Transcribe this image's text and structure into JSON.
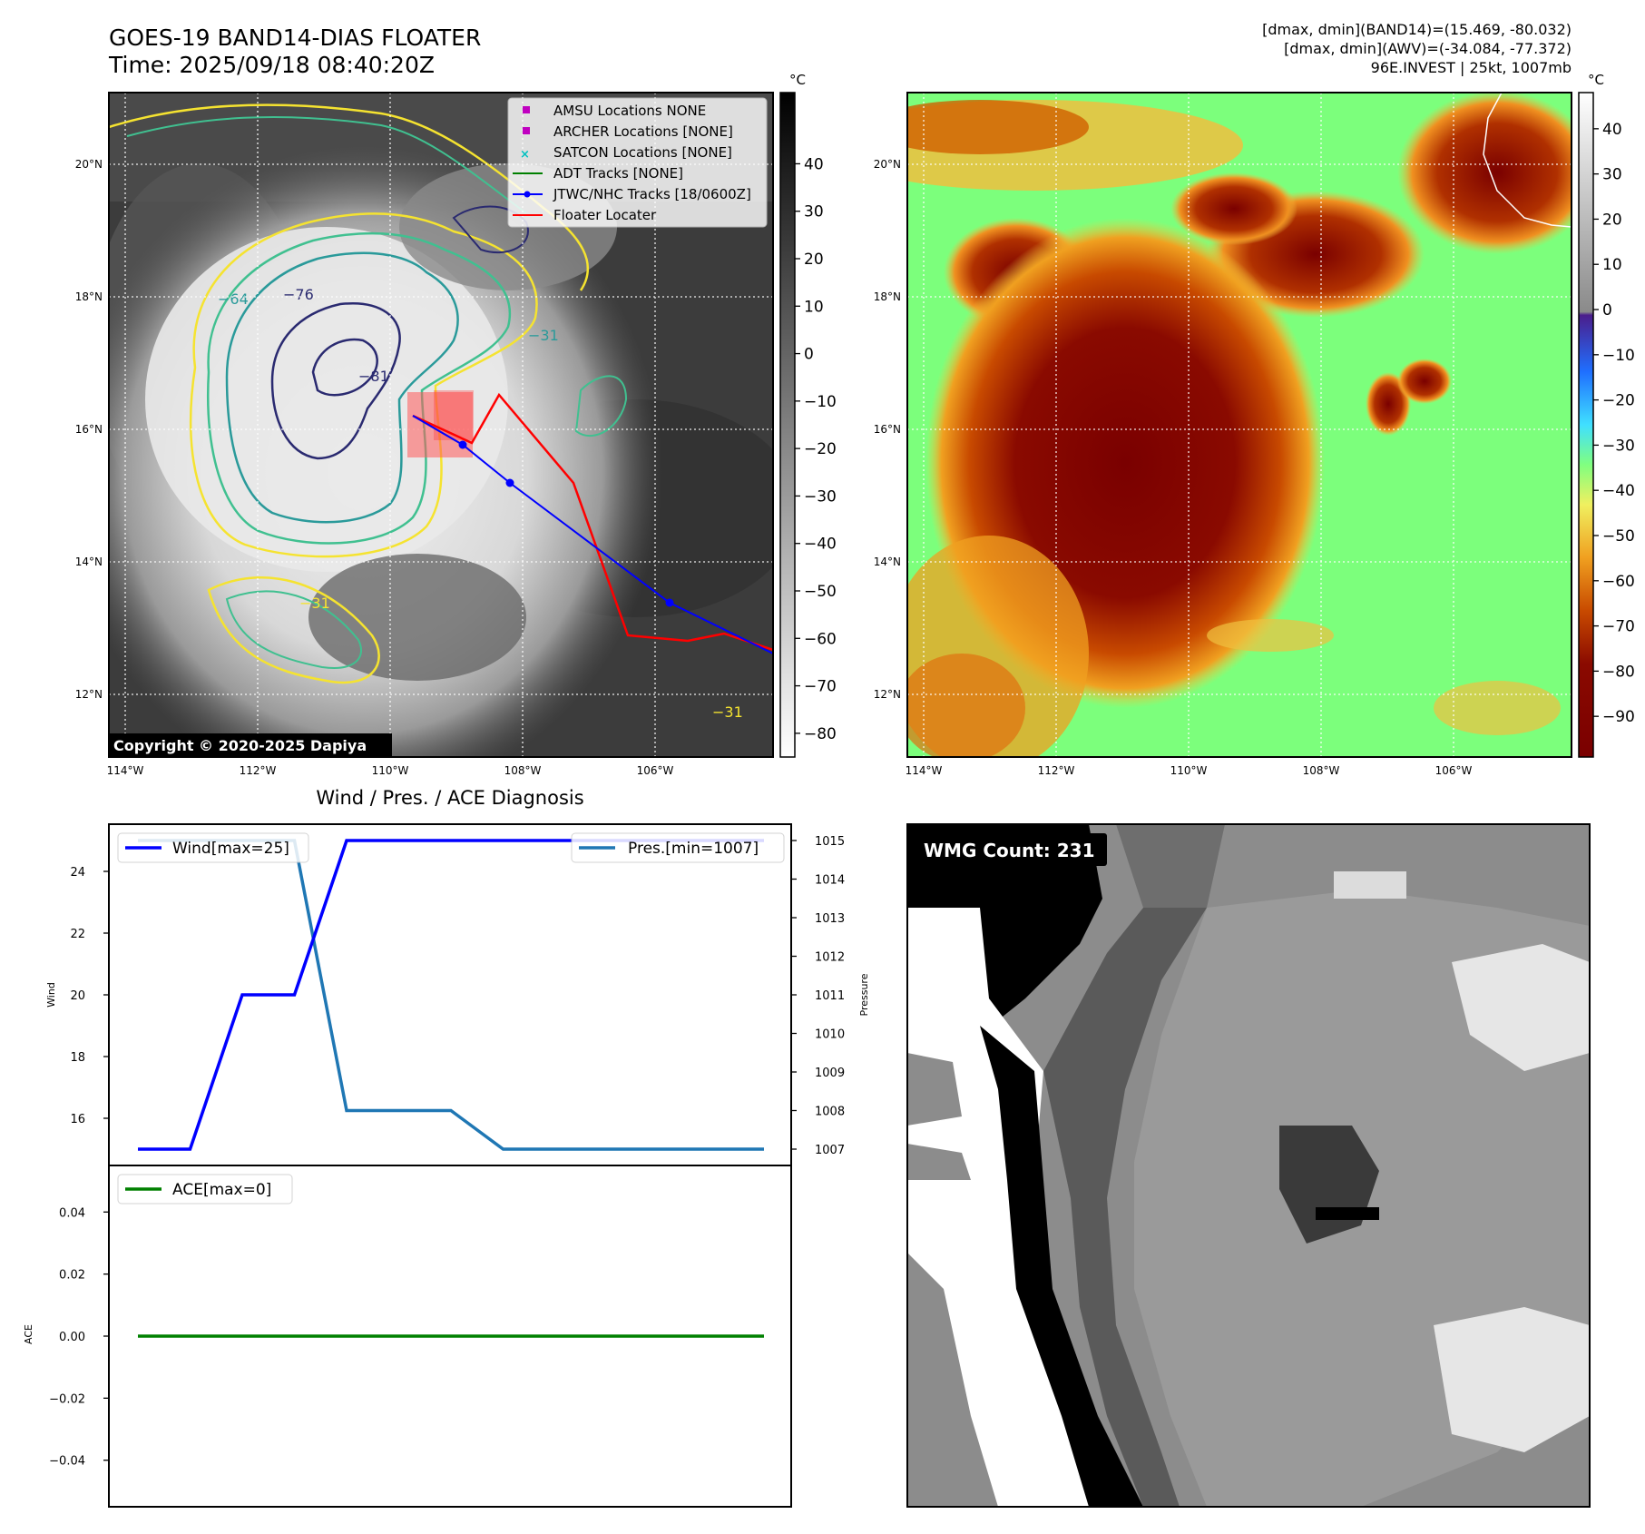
{
  "header": {
    "title": "GOES-19 BAND14-DIAS FLOATER",
    "time": "Time: 2025/09/18 08:40:20Z",
    "info_line1": "[dmax, dmin](BAND14)=(15.469, -80.032)",
    "info_line2": "[dmax, dmin](AWV)=(-34.084, -77.372)",
    "info_line3": "96E.INVEST | 25kt, 1007mb"
  },
  "ir_panel": {
    "copyright": "Copyright © 2020-2025 Dapiya",
    "colorbar_unit": "°C",
    "colorbar_ticks": [
      "40",
      "30",
      "20",
      "10",
      "0",
      "−10",
      "−20",
      "−30",
      "−40",
      "−50",
      "−60",
      "−70",
      "−80"
    ],
    "lat_ticks": [
      "20°N",
      "18°N",
      "16°N",
      "14°N",
      "12°N"
    ],
    "lon_ticks": [
      "114°W",
      "112°W",
      "110°W",
      "108°W",
      "106°W"
    ],
    "contour_labels": [
      "−31",
      "−31",
      "−31",
      "−64",
      "−76",
      "−81"
    ],
    "legend": [
      {
        "label": "AMSU Locations NONE",
        "color": "#c000c0",
        "marker": "square"
      },
      {
        "label": "ARCHER Locations [NONE]",
        "color": "#c000c0",
        "marker": "square"
      },
      {
        "label": "SATCON Locations [NONE]",
        "color": "#00c0c0",
        "marker": "x"
      },
      {
        "label": "ADT Tracks [NONE]",
        "color": "#008000",
        "marker": "line"
      },
      {
        "label": "JTWC/NHC Tracks [18/0600Z]",
        "color": "#0000ff",
        "marker": "line-dot"
      },
      {
        "label": "Floater Locater",
        "color": "#ff0000",
        "marker": "line"
      }
    ]
  },
  "awv_panel": {
    "colorbar_unit": "°C",
    "colorbar_ticks": [
      "40",
      "30",
      "20",
      "10",
      "0",
      "−10",
      "−20",
      "−30",
      "−40",
      "−50",
      "−60",
      "−70",
      "−80",
      "−90"
    ],
    "lat_ticks": [
      "20°N",
      "18°N",
      "16°N",
      "14°N",
      "12°N"
    ],
    "lon_ticks": [
      "114°W",
      "112°W",
      "110°W",
      "108°W",
      "106°W"
    ]
  },
  "wmg_panel": {
    "label": "WMG Count: 231"
  },
  "chart_data": [
    {
      "type": "line",
      "title": "Wind / Pres. / ACE Diagnosis",
      "x": [
        0,
        1,
        2,
        3,
        4,
        5,
        6,
        7,
        8,
        9,
        10,
        11,
        12
      ],
      "ylabel": "Wind",
      "ylim": [
        15,
        25
      ],
      "yticks": [
        "24",
        "22",
        "20",
        "18",
        "16"
      ],
      "series": [
        {
          "name": "Wind[max=25]",
          "color": "#0000ff",
          "values": [
            15,
            15,
            20,
            20,
            25,
            25,
            25,
            25,
            25,
            25,
            25,
            25,
            25
          ]
        }
      ],
      "secondary": {
        "ylabel": "Pressure",
        "ylim": [
          1007,
          1015
        ],
        "yticks": [
          "1015",
          "1014",
          "1013",
          "1012",
          "1011",
          "1010",
          "1009",
          "1008",
          "1007"
        ],
        "series": [
          {
            "name": "Pres.[min=1007]",
            "color": "#1f77b4",
            "values": [
              1015,
              1015,
              1015,
              1015,
              1008,
              1008,
              1008,
              1007,
              1007,
              1007,
              1007,
              1007,
              1007
            ]
          }
        ]
      }
    },
    {
      "type": "line",
      "ylabel": "ACE",
      "ylim": [
        -0.055,
        0.055
      ],
      "yticks": [
        "0.04",
        "0.02",
        "0.00",
        "−0.02",
        "−0.04"
      ],
      "series": [
        {
          "name": "ACE[max=0]",
          "color": "#008000",
          "values": [
            0,
            0,
            0,
            0,
            0,
            0,
            0,
            0,
            0,
            0,
            0,
            0,
            0
          ]
        }
      ]
    }
  ]
}
